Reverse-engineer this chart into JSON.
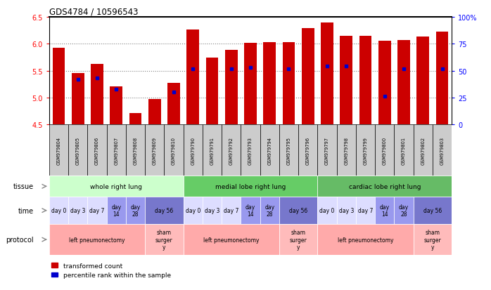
{
  "title": "GDS4784 / 10596543",
  "samples": [
    "GSM979804",
    "GSM979805",
    "GSM979806",
    "GSM979807",
    "GSM979808",
    "GSM979809",
    "GSM979810",
    "GSM979790",
    "GSM979791",
    "GSM979792",
    "GSM979793",
    "GSM979794",
    "GSM979795",
    "GSM979796",
    "GSM979797",
    "GSM979798",
    "GSM979799",
    "GSM979800",
    "GSM979801",
    "GSM979802",
    "GSM979803"
  ],
  "red_values": [
    5.92,
    5.46,
    5.63,
    5.21,
    4.71,
    4.98,
    5.28,
    6.27,
    5.74,
    5.89,
    6.02,
    6.03,
    6.03,
    6.29,
    6.4,
    6.15,
    6.14,
    6.06,
    6.07,
    6.13,
    6.22
  ],
  "blue_values": [
    null,
    0.42,
    0.43,
    0.33,
    null,
    null,
    0.3,
    0.52,
    null,
    0.52,
    0.53,
    null,
    0.52,
    null,
    0.54,
    0.54,
    null,
    0.26,
    0.52,
    null,
    0.52
  ],
  "ylim_left": [
    4.5,
    6.5
  ],
  "ylim_right": [
    0,
    100
  ],
  "yticks_left": [
    4.5,
    5.0,
    5.5,
    6.0,
    6.5
  ],
  "yticks_right": [
    0,
    25,
    50,
    75,
    100
  ],
  "ytick_labels_right": [
    "0",
    "25",
    "50",
    "75",
    "100%"
  ],
  "bar_color": "#cc0000",
  "blue_color": "#0000cc",
  "tissue_groups": [
    {
      "label": "whole right lung",
      "start": 0,
      "end": 7,
      "color": "#ccffcc"
    },
    {
      "label": "medial lobe right lung",
      "start": 7,
      "end": 14,
      "color": "#66cc66"
    },
    {
      "label": "cardiac lobe right lung",
      "start": 14,
      "end": 21,
      "color": "#66bb66"
    }
  ],
  "time_groups": [
    {
      "label": "day 0",
      "start": 0,
      "end": 1,
      "color": "#ddddff"
    },
    {
      "label": "day 3",
      "start": 1,
      "end": 2,
      "color": "#ddddff"
    },
    {
      "label": "day 7",
      "start": 2,
      "end": 3,
      "color": "#ddddff"
    },
    {
      "label": "day\n14",
      "start": 3,
      "end": 4,
      "color": "#9999ee"
    },
    {
      "label": "day\n28",
      "start": 4,
      "end": 5,
      "color": "#9999ee"
    },
    {
      "label": "day 56",
      "start": 5,
      "end": 7,
      "color": "#7777cc"
    },
    {
      "label": "day 0",
      "start": 7,
      "end": 8,
      "color": "#ddddff"
    },
    {
      "label": "day 3",
      "start": 8,
      "end": 9,
      "color": "#ddddff"
    },
    {
      "label": "day 7",
      "start": 9,
      "end": 10,
      "color": "#ddddff"
    },
    {
      "label": "day\n14",
      "start": 10,
      "end": 11,
      "color": "#9999ee"
    },
    {
      "label": "day\n28",
      "start": 11,
      "end": 12,
      "color": "#9999ee"
    },
    {
      "label": "day 56",
      "start": 12,
      "end": 14,
      "color": "#7777cc"
    },
    {
      "label": "day 0",
      "start": 14,
      "end": 15,
      "color": "#ddddff"
    },
    {
      "label": "day 3",
      "start": 15,
      "end": 16,
      "color": "#ddddff"
    },
    {
      "label": "day 7",
      "start": 16,
      "end": 17,
      "color": "#ddddff"
    },
    {
      "label": "day\n14",
      "start": 17,
      "end": 18,
      "color": "#9999ee"
    },
    {
      "label": "day\n28",
      "start": 18,
      "end": 19,
      "color": "#9999ee"
    },
    {
      "label": "day 56",
      "start": 19,
      "end": 21,
      "color": "#7777cc"
    }
  ],
  "protocol_groups": [
    {
      "label": "left pneumonectomy",
      "start": 0,
      "end": 5,
      "color": "#ffaaaa"
    },
    {
      "label": "sham\nsurger\ny",
      "start": 5,
      "end": 7,
      "color": "#ffbbbb"
    },
    {
      "label": "left pneumonectomy",
      "start": 7,
      "end": 12,
      "color": "#ffaaaa"
    },
    {
      "label": "sham\nsurger\ny",
      "start": 12,
      "end": 14,
      "color": "#ffbbbb"
    },
    {
      "label": "left pneumonectomy",
      "start": 14,
      "end": 19,
      "color": "#ffaaaa"
    },
    {
      "label": "sham\nsurger\ny",
      "start": 19,
      "end": 21,
      "color": "#ffbbbb"
    }
  ],
  "legend_red": "transformed count",
  "legend_blue": "percentile rank within the sample",
  "bar_bottom": 4.5,
  "bg_xtick": "#cccccc",
  "label_arrow_color": "#888888"
}
